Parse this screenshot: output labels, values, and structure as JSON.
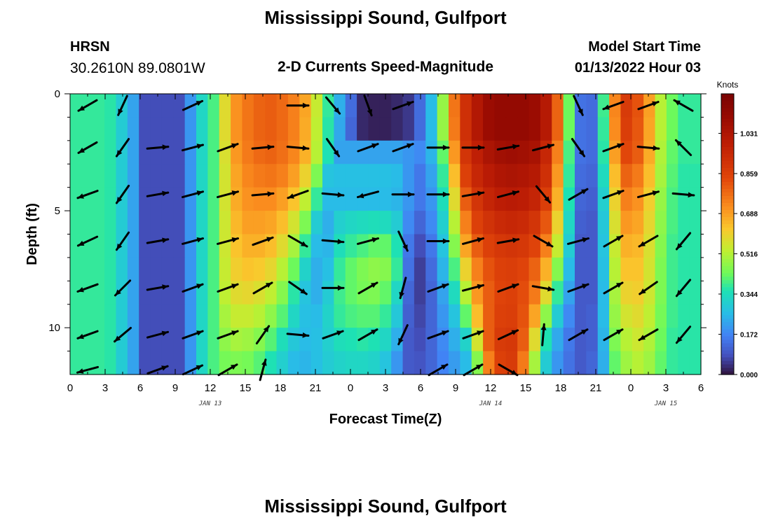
{
  "page": {
    "title": "Mississippi Sound, Gulfport",
    "footer_title": "Mississippi Sound, Gulfport"
  },
  "header": {
    "station": "HRSN",
    "coords": "30.2610N  89.0801W",
    "product": "2-D Currents Speed-Magnitude",
    "model_label": "Model Start Time",
    "model_time": "01/13/2022 Hour 03"
  },
  "chart_data": {
    "type": "heatmap",
    "title": "2-D Currents Speed-Magnitude",
    "xlabel": "Forecast Time(Z)",
    "ylabel": "Depth (ft)",
    "x_tick_labels": [
      "0",
      "3",
      "6",
      "9",
      "12",
      "15",
      "18",
      "21",
      "0",
      "3",
      "6",
      "9",
      "12",
      "15",
      "18",
      "21",
      "0",
      "3",
      "6"
    ],
    "x_range_hours": [
      0,
      54
    ],
    "date_labels": [
      {
        "text": "JAN 13",
        "hour": 12
      },
      {
        "text": "JAN 14",
        "hour": 36
      },
      {
        "text": "JAN 15",
        "hour": 51
      }
    ],
    "y_range": [
      0,
      12
    ],
    "y_reversed": true,
    "y_tick_labels": [
      "0",
      "5",
      "10"
    ],
    "y_tick_values": [
      0,
      5,
      10
    ],
    "colorbar": {
      "label": "Knots",
      "min": 0.0,
      "max": 1.2,
      "tick_labels": [
        "1.031",
        "0.859",
        "0.688",
        "0.516",
        "0.344",
        "0.172",
        "0.000"
      ],
      "tick_values": [
        1.031,
        0.859,
        0.688,
        0.516,
        0.344,
        0.172,
        0.0
      ]
    },
    "grid": {
      "hours": [
        0,
        1,
        2,
        3,
        4,
        5,
        6,
        7,
        8,
        9,
        10,
        11,
        12,
        13,
        14,
        15,
        16,
        17,
        18,
        19,
        20,
        21,
        22,
        23,
        24,
        25,
        26,
        27,
        28,
        29,
        30,
        31,
        32,
        33,
        34,
        35,
        36,
        37,
        38,
        39,
        40,
        41,
        42,
        43,
        44,
        45,
        46,
        47,
        48,
        49,
        50,
        51,
        52,
        53,
        54
      ],
      "depths_ft": [
        0,
        1,
        2,
        3,
        4,
        5,
        6,
        7,
        8,
        9,
        10,
        11
      ],
      "speed_knots": [
        [
          0.38,
          0.38,
          0.38,
          0.37,
          0.3,
          0.22,
          0.08,
          0.08,
          0.08,
          0.08,
          0.2,
          0.33,
          0.4,
          0.58,
          0.71,
          0.76,
          0.79,
          0.8,
          0.78,
          0.74,
          0.68,
          0.54,
          0.38,
          0.24,
          0.13,
          0.03,
          0.02,
          0.02,
          0.03,
          0.05,
          0.13,
          0.26,
          0.48,
          0.76,
          0.92,
          1.02,
          1.09,
          1.11,
          1.11,
          1.11,
          1.09,
          1.01,
          0.79,
          0.43,
          0.14,
          0.13,
          0.39,
          0.73,
          0.88,
          0.82,
          0.69,
          0.52,
          0.43,
          0.38,
          0.38
        ],
        [
          0.38,
          0.38,
          0.38,
          0.37,
          0.3,
          0.22,
          0.08,
          0.08,
          0.08,
          0.08,
          0.2,
          0.33,
          0.4,
          0.58,
          0.71,
          0.76,
          0.79,
          0.8,
          0.78,
          0.74,
          0.67,
          0.53,
          0.37,
          0.23,
          0.12,
          0.03,
          0.02,
          0.02,
          0.03,
          0.05,
          0.13,
          0.26,
          0.48,
          0.75,
          0.92,
          1.02,
          1.09,
          1.11,
          1.11,
          1.11,
          1.09,
          1.01,
          0.79,
          0.43,
          0.14,
          0.13,
          0.38,
          0.72,
          0.87,
          0.81,
          0.68,
          0.52,
          0.43,
          0.38,
          0.38
        ],
        [
          0.38,
          0.38,
          0.38,
          0.37,
          0.3,
          0.22,
          0.08,
          0.08,
          0.08,
          0.08,
          0.2,
          0.33,
          0.4,
          0.57,
          0.7,
          0.75,
          0.78,
          0.79,
          0.77,
          0.73,
          0.66,
          0.52,
          0.36,
          0.22,
          0.22,
          0.22,
          0.22,
          0.22,
          0.22,
          0.2,
          0.18,
          0.25,
          0.42,
          0.7,
          0.9,
          0.98,
          1.04,
          1.07,
          1.08,
          1.07,
          1.05,
          0.95,
          0.74,
          0.4,
          0.14,
          0.13,
          0.37,
          0.69,
          0.84,
          0.8,
          0.67,
          0.51,
          0.42,
          0.38,
          0.38
        ],
        [
          0.38,
          0.38,
          0.38,
          0.37,
          0.3,
          0.22,
          0.08,
          0.08,
          0.08,
          0.08,
          0.2,
          0.33,
          0.4,
          0.56,
          0.68,
          0.73,
          0.75,
          0.76,
          0.74,
          0.69,
          0.6,
          0.45,
          0.28,
          0.27,
          0.27,
          0.27,
          0.27,
          0.27,
          0.26,
          0.2,
          0.15,
          0.22,
          0.38,
          0.64,
          0.86,
          0.95,
          1.0,
          1.03,
          1.04,
          1.03,
          1.01,
          0.92,
          0.7,
          0.38,
          0.13,
          0.12,
          0.34,
          0.64,
          0.79,
          0.75,
          0.64,
          0.5,
          0.41,
          0.37,
          0.37
        ],
        [
          0.38,
          0.38,
          0.38,
          0.37,
          0.3,
          0.22,
          0.08,
          0.08,
          0.08,
          0.08,
          0.2,
          0.33,
          0.4,
          0.56,
          0.67,
          0.71,
          0.72,
          0.72,
          0.69,
          0.63,
          0.53,
          0.38,
          0.26,
          0.26,
          0.26,
          0.26,
          0.26,
          0.26,
          0.25,
          0.2,
          0.15,
          0.2,
          0.35,
          0.58,
          0.8,
          0.9,
          0.96,
          0.99,
          1.0,
          0.99,
          0.96,
          0.87,
          0.66,
          0.36,
          0.12,
          0.11,
          0.31,
          0.6,
          0.74,
          0.71,
          0.61,
          0.48,
          0.4,
          0.37,
          0.37
        ],
        [
          0.38,
          0.38,
          0.38,
          0.37,
          0.3,
          0.22,
          0.08,
          0.08,
          0.08,
          0.08,
          0.2,
          0.33,
          0.4,
          0.55,
          0.65,
          0.69,
          0.69,
          0.68,
          0.64,
          0.56,
          0.45,
          0.3,
          0.24,
          0.31,
          0.33,
          0.34,
          0.35,
          0.34,
          0.3,
          0.18,
          0.12,
          0.18,
          0.31,
          0.52,
          0.74,
          0.86,
          0.91,
          0.94,
          0.95,
          0.94,
          0.9,
          0.81,
          0.6,
          0.33,
          0.11,
          0.1,
          0.29,
          0.57,
          0.7,
          0.68,
          0.59,
          0.47,
          0.4,
          0.37,
          0.37
        ],
        [
          0.38,
          0.38,
          0.38,
          0.37,
          0.3,
          0.22,
          0.08,
          0.08,
          0.08,
          0.08,
          0.2,
          0.33,
          0.4,
          0.55,
          0.63,
          0.66,
          0.66,
          0.64,
          0.58,
          0.5,
          0.38,
          0.26,
          0.25,
          0.35,
          0.38,
          0.4,
          0.42,
          0.42,
          0.36,
          0.15,
          0.08,
          0.15,
          0.28,
          0.46,
          0.68,
          0.8,
          0.86,
          0.89,
          0.9,
          0.89,
          0.85,
          0.74,
          0.54,
          0.3,
          0.1,
          0.1,
          0.28,
          0.54,
          0.66,
          0.65,
          0.57,
          0.46,
          0.39,
          0.37,
          0.37
        ],
        [
          0.38,
          0.38,
          0.38,
          0.37,
          0.3,
          0.22,
          0.08,
          0.08,
          0.08,
          0.08,
          0.2,
          0.33,
          0.4,
          0.54,
          0.61,
          0.63,
          0.62,
          0.59,
          0.52,
          0.43,
          0.32,
          0.24,
          0.27,
          0.38,
          0.42,
          0.45,
          0.47,
          0.46,
          0.38,
          0.14,
          0.06,
          0.13,
          0.25,
          0.4,
          0.6,
          0.74,
          0.82,
          0.86,
          0.87,
          0.85,
          0.79,
          0.66,
          0.46,
          0.26,
          0.1,
          0.1,
          0.27,
          0.52,
          0.63,
          0.63,
          0.56,
          0.45,
          0.39,
          0.37,
          0.37
        ],
        [
          0.38,
          0.38,
          0.38,
          0.37,
          0.3,
          0.22,
          0.08,
          0.08,
          0.08,
          0.08,
          0.2,
          0.33,
          0.4,
          0.53,
          0.58,
          0.59,
          0.57,
          0.53,
          0.46,
          0.37,
          0.28,
          0.24,
          0.3,
          0.39,
          0.42,
          0.44,
          0.45,
          0.42,
          0.33,
          0.12,
          0.06,
          0.12,
          0.22,
          0.34,
          0.52,
          0.7,
          0.8,
          0.85,
          0.86,
          0.83,
          0.75,
          0.58,
          0.38,
          0.22,
          0.1,
          0.1,
          0.26,
          0.5,
          0.6,
          0.61,
          0.55,
          0.45,
          0.39,
          0.37,
          0.37
        ],
        [
          0.38,
          0.38,
          0.38,
          0.37,
          0.3,
          0.22,
          0.08,
          0.08,
          0.08,
          0.08,
          0.2,
          0.33,
          0.4,
          0.5,
          0.54,
          0.54,
          0.52,
          0.47,
          0.41,
          0.33,
          0.27,
          0.26,
          0.32,
          0.38,
          0.4,
          0.41,
          0.41,
          0.38,
          0.29,
          0.11,
          0.07,
          0.12,
          0.2,
          0.28,
          0.42,
          0.64,
          0.8,
          0.86,
          0.87,
          0.82,
          0.68,
          0.47,
          0.3,
          0.18,
          0.1,
          0.11,
          0.26,
          0.48,
          0.56,
          0.58,
          0.53,
          0.44,
          0.39,
          0.37,
          0.37
        ],
        [
          0.38,
          0.38,
          0.38,
          0.37,
          0.3,
          0.22,
          0.08,
          0.08,
          0.08,
          0.08,
          0.2,
          0.33,
          0.4,
          0.47,
          0.5,
          0.49,
          0.46,
          0.41,
          0.35,
          0.29,
          0.26,
          0.27,
          0.31,
          0.35,
          0.36,
          0.37,
          0.36,
          0.33,
          0.24,
          0.1,
          0.08,
          0.12,
          0.18,
          0.24,
          0.32,
          0.56,
          0.8,
          0.88,
          0.89,
          0.8,
          0.58,
          0.36,
          0.23,
          0.15,
          0.1,
          0.11,
          0.25,
          0.45,
          0.52,
          0.55,
          0.51,
          0.43,
          0.38,
          0.37,
          0.37
        ],
        [
          0.38,
          0.38,
          0.38,
          0.37,
          0.3,
          0.22,
          0.08,
          0.08,
          0.08,
          0.08,
          0.2,
          0.33,
          0.4,
          0.44,
          0.45,
          0.44,
          0.41,
          0.36,
          0.31,
          0.26,
          0.25,
          0.27,
          0.3,
          0.32,
          0.33,
          0.33,
          0.32,
          0.28,
          0.2,
          0.1,
          0.09,
          0.12,
          0.17,
          0.21,
          0.26,
          0.46,
          0.74,
          0.86,
          0.88,
          0.75,
          0.5,
          0.3,
          0.2,
          0.14,
          0.1,
          0.12,
          0.24,
          0.42,
          0.49,
          0.52,
          0.49,
          0.42,
          0.38,
          0.37,
          0.37
        ]
      ]
    },
    "vector_hours": [
      1.5,
      4.5,
      7.5,
      10.5,
      13.5,
      16.5,
      19.5,
      22.5,
      25.5,
      28.5,
      31.5,
      34.5,
      37.5,
      40.5,
      43.5,
      46.5,
      49.5,
      52.5
    ],
    "vector_depths_ft": [
      0.5,
      2.3,
      4.3,
      6.3,
      8.3,
      10.3,
      11.8
    ],
    "vector_bearing_deg": [
      [
        240,
        205,
        null,
        65,
        null,
        null,
        90,
        140,
        160,
        70,
        null,
        null,
        null,
        null,
        155,
        250,
        70,
        300
      ],
      [
        240,
        215,
        85,
        75,
        70,
        85,
        95,
        145,
        70,
        70,
        90,
        90,
        80,
        75,
        145,
        70,
        95,
        315
      ],
      [
        250,
        215,
        80,
        75,
        75,
        85,
        250,
        95,
        255,
        90,
        90,
        80,
        75,
        140,
        60,
        70,
        75,
        95
      ],
      [
        245,
        215,
        80,
        75,
        75,
        70,
        120,
        95,
        75,
        155,
        90,
        75,
        80,
        120,
        75,
        60,
        240,
        220
      ],
      [
        250,
        225,
        80,
        70,
        70,
        60,
        125,
        90,
        60,
        195,
        70,
        75,
        70,
        100,
        70,
        60,
        235,
        220
      ],
      [
        250,
        230,
        75,
        70,
        70,
        35,
        95,
        70,
        60,
        205,
        70,
        70,
        65,
        5,
        60,
        60,
        240,
        220
      ],
      [
        255,
        null,
        70,
        65,
        60,
        15,
        null,
        null,
        null,
        null,
        60,
        60,
        120,
        null,
        null,
        null,
        null,
        null
      ]
    ],
    "annotations": []
  }
}
